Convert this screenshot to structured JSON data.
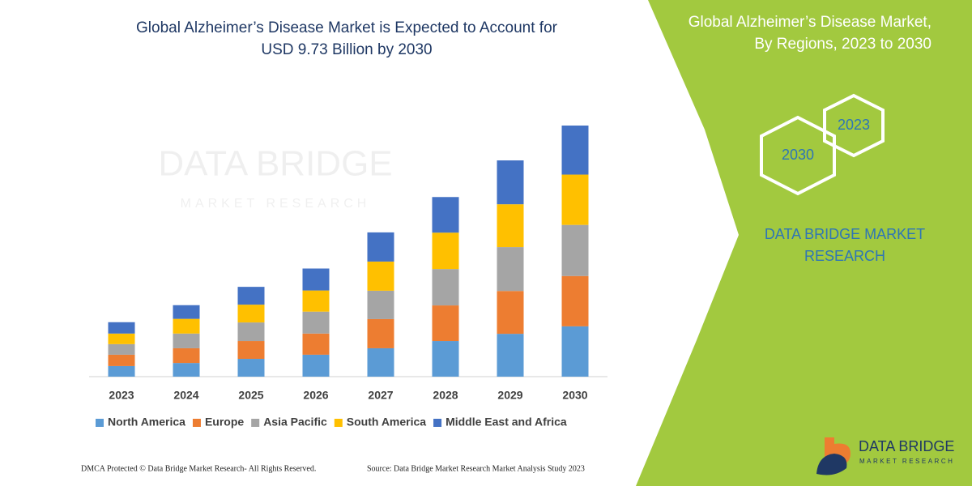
{
  "chart_data": {
    "type": "bar",
    "stacked": true,
    "title": [
      "Global Alzheimer’s Disease Market is Expected to Account for",
      "USD 9.73 Billion by 2030"
    ],
    "categories": [
      "2023",
      "2024",
      "2025",
      "2026",
      "2027",
      "2028",
      "2029",
      "2030"
    ],
    "series": [
      {
        "name": "North America",
        "color": "#5b9bd5",
        "values": [
          0.41,
          0.53,
          0.69,
          0.85,
          1.1,
          1.38,
          1.66,
          1.95
        ]
      },
      {
        "name": "Europe",
        "color": "#ed7d31",
        "values": [
          0.44,
          0.57,
          0.69,
          0.82,
          1.13,
          1.38,
          1.66,
          1.95
        ]
      },
      {
        "name": "Asia Pacific",
        "color": "#a5a5a5",
        "values": [
          0.41,
          0.57,
          0.72,
          0.85,
          1.1,
          1.41,
          1.7,
          1.98
        ]
      },
      {
        "name": "South America",
        "color": "#ffc000",
        "values": [
          0.41,
          0.57,
          0.69,
          0.82,
          1.13,
          1.41,
          1.66,
          1.95
        ]
      },
      {
        "name": "Middle East and Africa",
        "color": "#4472c4",
        "values": [
          0.44,
          0.53,
          0.69,
          0.85,
          1.13,
          1.38,
          1.7,
          1.9
        ]
      }
    ]
  },
  "panel": {
    "title": [
      "Global Alzheimer’s Disease Market,",
      "By Regions, 2023 to 2030"
    ],
    "hexagons": [
      "2023",
      "2030"
    ],
    "brand": [
      "DATA BRIDGE MARKET",
      "RESEARCH"
    ]
  },
  "footer": {
    "left": "DMCA Protected © Data Bridge Market Research-  All Rights Reserved.",
    "right": "Source: Data Bridge Market Research  Market Analysis Study 2023"
  },
  "logo": {
    "name": "DATA BRIDGE",
    "tagline": "MARKET RESEARCH"
  }
}
